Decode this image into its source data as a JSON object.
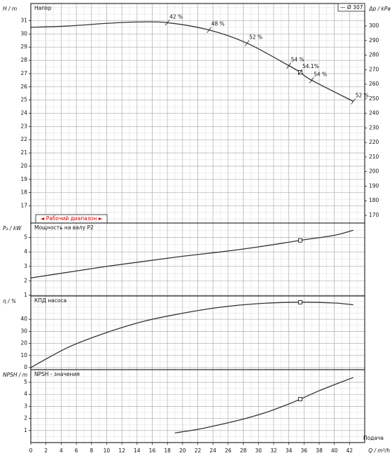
{
  "chart_data": [
    {
      "type": "line",
      "title": "Напор",
      "ylabel": "H / m",
      "y2label": "Δp / kPa",
      "legend": "— Ø 307",
      "legend_position": "top-right",
      "range_label": "◄ Рабочий диапазон ►",
      "ylim": [
        15.7,
        32.3
      ],
      "yticks": [
        17,
        18,
        19,
        20,
        21,
        22,
        23,
        24,
        25,
        26,
        27,
        28,
        29,
        30,
        31
      ],
      "y2lim": [
        164.7,
        315.4
      ],
      "y2ticks": [
        170,
        180,
        190,
        200,
        210,
        220,
        230,
        240,
        250,
        260,
        270,
        280,
        290,
        300
      ],
      "grid": true,
      "series": [
        {
          "name": "Ø 307",
          "color": "#333333",
          "x": [
            0,
            5,
            10,
            14,
            18,
            23.5,
            28.5,
            34,
            35.5,
            37,
            42.5
          ],
          "values": [
            30.5,
            30.6,
            30.8,
            30.9,
            30.85,
            30.3,
            29.3,
            27.6,
            27.1,
            26.5,
            24.9
          ]
        }
      ],
      "point": {
        "x": 35.5,
        "y": 27.1
      },
      "annotations": [
        {
          "x": 18,
          "y": 30.85,
          "label": "42 %"
        },
        {
          "x": 23.5,
          "y": 30.3,
          "label": "48 %"
        },
        {
          "x": 28.5,
          "y": 29.3,
          "label": "52 %"
        },
        {
          "x": 34,
          "y": 27.6,
          "label": "54 %"
        },
        {
          "x": 35.5,
          "y": 27.1,
          "label": "54.1%"
        },
        {
          "x": 37,
          "y": 26.5,
          "label": "54 %"
        },
        {
          "x": 42.5,
          "y": 24.9,
          "label": "52 %"
        }
      ]
    },
    {
      "type": "line",
      "title": "Мощность на валу P2",
      "ylabel": "P₂ / kW",
      "ylim": [
        0.95,
        6
      ],
      "yticks": [
        1,
        2,
        3,
        4,
        5
      ],
      "grid": true,
      "series": [
        {
          "name": "P2",
          "color": "#333333",
          "x": [
            0,
            5,
            10,
            15,
            20,
            25,
            30,
            35.5,
            40,
            42.5
          ],
          "values": [
            2.2,
            2.6,
            3.0,
            3.35,
            3.7,
            4.0,
            4.35,
            4.8,
            5.15,
            5.5
          ]
        }
      ],
      "point": {
        "x": 35.5,
        "y": 4.8
      }
    },
    {
      "type": "line",
      "title": "КПД насоса",
      "ylabel": "η / %",
      "ylim": [
        -1.7,
        59.3
      ],
      "yticks": [
        0,
        10,
        20,
        30,
        40
      ],
      "grid": true,
      "series": [
        {
          "name": "η",
          "color": "#333333",
          "x": [
            0,
            5,
            10,
            15,
            20,
            25,
            30,
            35.5,
            40,
            42.5
          ],
          "values": [
            0,
            17,
            29,
            38.5,
            45,
            50,
            53,
            54.1,
            53.5,
            52
          ]
        }
      ],
      "point": {
        "x": 35.5,
        "y": 54.1
      }
    },
    {
      "type": "line",
      "title": "NPSH - значения",
      "ylabel": "NPSH / m",
      "xlabel": "Q / m³/h",
      "xnote": "Подача",
      "xlim": [
        0,
        44
      ],
      "xticks": [
        0,
        2,
        4,
        6,
        8,
        10,
        12,
        14,
        16,
        18,
        20,
        22,
        24,
        26,
        28,
        30,
        32,
        34,
        36,
        38,
        40,
        42
      ],
      "ylim": [
        0,
        6.05
      ],
      "yticks": [
        1,
        2,
        3,
        4,
        5
      ],
      "grid": true,
      "series": [
        {
          "name": "NPSH",
          "color": "#333333",
          "x": [
            19,
            22,
            25,
            28,
            31,
            34,
            35.5,
            38,
            40,
            42.5
          ],
          "values": [
            0.8,
            1.1,
            1.5,
            1.95,
            2.5,
            3.2,
            3.6,
            4.3,
            4.8,
            5.4
          ]
        }
      ],
      "point": {
        "x": 35.5,
        "y": 3.6
      }
    }
  ]
}
